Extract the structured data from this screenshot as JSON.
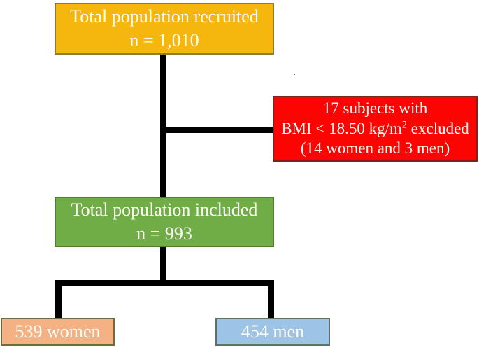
{
  "flowchart": {
    "nodes": {
      "recruited": {
        "line1": "Total population recruited",
        "line2": "n = 1,010",
        "fill": "#F5B60D",
        "border": "#8D7B31",
        "text_color": "#FFFFFF"
      },
      "excluded": {
        "line1": "17 subjects with",
        "line2_pre": "BMI < 18.50 kg/m",
        "line2_sup": "2",
        "line2_post": " excluded",
        "line3": "(14 women and 3 men)",
        "fill": "#FB0402",
        "border": "#7E231B",
        "text_color": "#FFFFFF"
      },
      "included": {
        "line1": "Total population included",
        "line2": "n = 993",
        "fill": "#70AD47",
        "border": "#507E32",
        "text_color": "#FFFFFF"
      },
      "women": {
        "label": "539 women",
        "fill": "#F4B183",
        "border": "#6E6B41",
        "text_color": "#FFFFFF"
      },
      "men": {
        "label": "454 men",
        "fill": "#9DC3E6",
        "border": "#5E7163",
        "text_color": "#FFFFFF"
      }
    },
    "connector_color": "#000000",
    "stray_mark": "."
  }
}
